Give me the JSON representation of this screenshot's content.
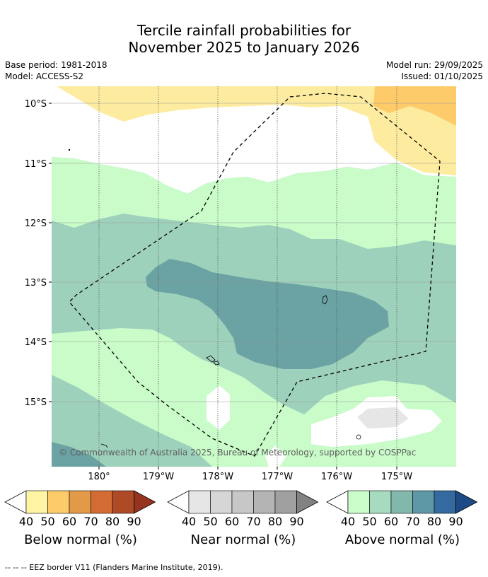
{
  "title": {
    "line1": "Tercile rainfall probabilities for",
    "line2": "November 2025 to January 2026"
  },
  "meta": {
    "base_period": "Base period: 1981-2018",
    "model": "Model: ACCESS-S2",
    "model_run": "Model run: 29/09/2025",
    "issued": "Issued: 01/10/2025"
  },
  "map": {
    "lat_labels": [
      "10°S",
      "11°S",
      "12°S",
      "13°S",
      "14°S",
      "15°S"
    ],
    "lon_labels": [
      "180°",
      "179°W",
      "178°W",
      "177°W",
      "176°W",
      "175°W"
    ],
    "copyright": "© Commonwealth of Australia 2025, Bureau of Meteorology, supported by COSPPac",
    "colors": {
      "above_50": "#c9fcc9",
      "above_60": "#9ed1bb",
      "above_70": "#6ba2a3",
      "below_50": "#fdec9f",
      "below_60": "#fecb6a",
      "near_50": "#e6e6e6",
      "normal": "#ffffff"
    }
  },
  "colorbars": [
    {
      "label": "Below normal (%)",
      "ticks": [
        "40",
        "50",
        "60",
        "70",
        "80",
        "90"
      ],
      "colors": [
        "#fff4a3",
        "#fecb6a",
        "#e39a48",
        "#d46b34",
        "#ae4a25",
        "#963420"
      ]
    },
    {
      "label": "Near normal (%)",
      "ticks": [
        "40",
        "50",
        "60",
        "70",
        "80",
        "90"
      ],
      "colors": [
        "#e6e6e6",
        "#d6d6d6",
        "#c7c7c7",
        "#b4b4b4",
        "#a0a0a0",
        "#828282"
      ]
    },
    {
      "label": "Above normal (%)",
      "ticks": [
        "40",
        "50",
        "60",
        "70",
        "80",
        "90"
      ],
      "colors": [
        "#c9fcc9",
        "#a6dbbf",
        "#82b8ac",
        "#5e97a5",
        "#346a9f",
        "#1d4a84"
      ]
    }
  ],
  "footnote": "--  --  -- EEZ border V11 (Flanders Marine Institute, 2019)."
}
